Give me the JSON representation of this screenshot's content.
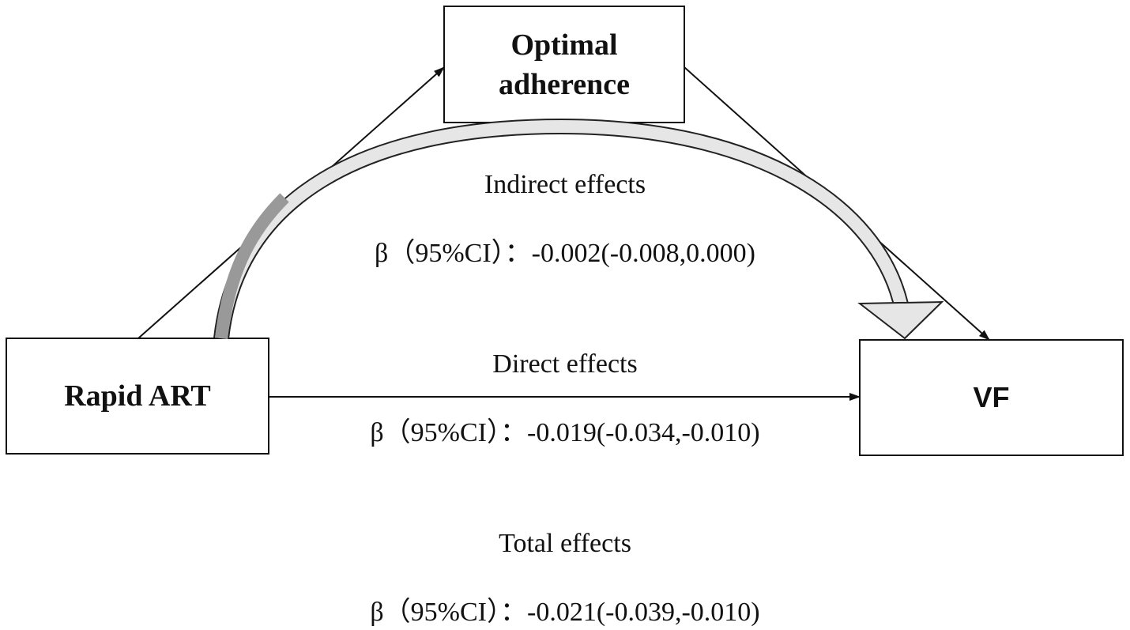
{
  "nodes": [
    {
      "label": "Optimal adherence"
    },
    {
      "label": "Rapid ART"
    },
    {
      "label": "VF"
    }
  ],
  "effects": [
    {
      "title": "Indirect effects",
      "estimate": "β（95%CI）：-0.002(-0.008,0.000)"
    },
    {
      "title": "Direct effects",
      "estimate": "β（95%CI）：-0.019(-0.034,-0.010)"
    },
    {
      "title": "Total effects",
      "estimate": "β（95%CI）：-0.021(-0.039,-0.010)"
    }
  ]
}
